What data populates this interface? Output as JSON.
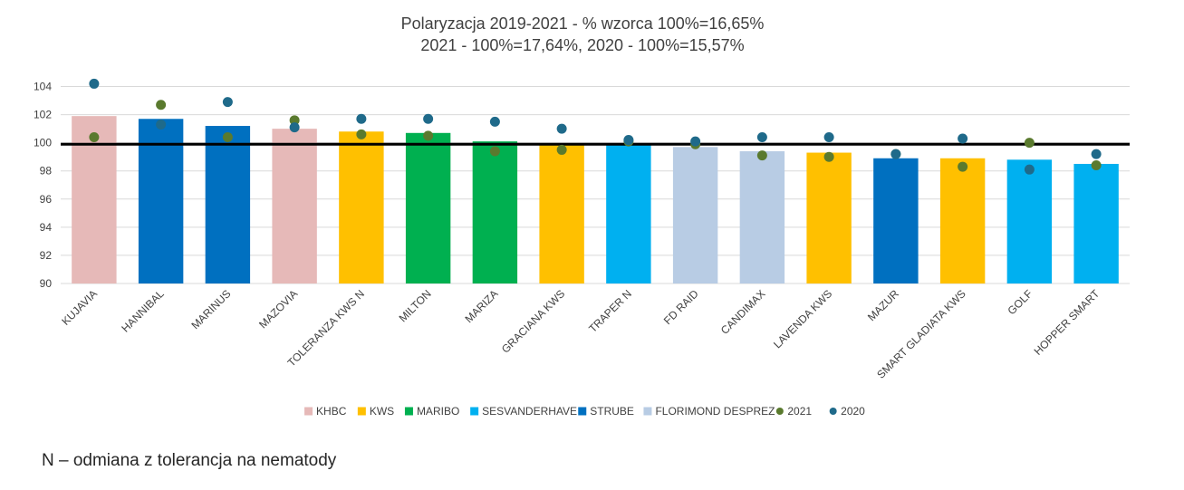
{
  "chart_data": {
    "type": "bar",
    "title": "Polaryzacja 2019-2021 - % wzorca 100%=16,65%",
    "subtitle": "2021 - 100%=17,64%, 2020 - 100%=15,57%",
    "ylim": [
      90,
      105
    ],
    "yticks": [
      "90",
      "92",
      "94",
      "96",
      "98",
      "100",
      "102",
      "104"
    ],
    "reference_line": 99.9,
    "categories": [
      "KUJAVIA",
      "HANNIBAL",
      "MARINUS",
      "MAZOVIA",
      "TOLERANZA KWS N",
      "MILTON",
      "MARIZA",
      "GRACIANA KWS",
      "TRAPER N",
      "FD RAID",
      "CANDIMAX",
      "LAVENDA KWS",
      "MAZUR",
      "SMART GLADIATA KWS",
      "GOLF",
      "HOPPER SMART"
    ],
    "values": [
      101.9,
      101.7,
      101.2,
      101.0,
      100.8,
      100.7,
      100.1,
      99.9,
      99.9,
      99.7,
      99.4,
      99.3,
      98.9,
      98.9,
      98.8,
      98.5
    ],
    "breeders": [
      "KHBC",
      "STRUBE",
      "STRUBE",
      "KHBC",
      "KWS",
      "MARIBO",
      "MARIBO",
      "KWS",
      "SESVANDERHAVE",
      "FLORIMOND DESPREZ",
      "FLORIMOND DESPREZ",
      "KWS",
      "STRUBE",
      "KWS",
      "SESVANDERHAVE",
      "SESVANDERHAVE"
    ],
    "series": [
      {
        "name": "2021",
        "color": "#5a7a2e",
        "values": [
          100.4,
          102.7,
          100.4,
          101.6,
          100.6,
          100.5,
          99.4,
          99.5,
          100.1,
          99.9,
          99.1,
          99.0,
          99.2,
          98.3,
          100.0,
          98.4
        ]
      },
      {
        "name": "2020",
        "color": "#1f6a8a",
        "values": [
          104.2,
          101.3,
          102.9,
          101.1,
          101.7,
          101.7,
          101.5,
          101.0,
          100.2,
          100.1,
          100.4,
          100.4,
          99.2,
          100.3,
          98.1,
          99.2
        ]
      }
    ],
    "legend": [
      {
        "label": "KHBC",
        "type": "bar",
        "color": "#e6b9b8"
      },
      {
        "label": "KWS",
        "type": "bar",
        "color": "#ffc000"
      },
      {
        "label": "MARIBO",
        "type": "bar",
        "color": "#00b050"
      },
      {
        "label": "SESVANDERHAVE",
        "type": "bar",
        "color": "#00b0f0"
      },
      {
        "label": "STRUBE",
        "type": "bar",
        "color": "#0070c0"
      },
      {
        "label": "FLORIMOND DESPREZ",
        "type": "bar",
        "color": "#b8cce4"
      },
      {
        "label": "2021",
        "type": "dot",
        "color": "#5a7a2e"
      },
      {
        "label": "2020",
        "type": "dot",
        "color": "#1f6a8a"
      }
    ],
    "legend_position": "bottom",
    "grid": true
  },
  "footnote": "N – odmiana z tolerancja na nematody"
}
